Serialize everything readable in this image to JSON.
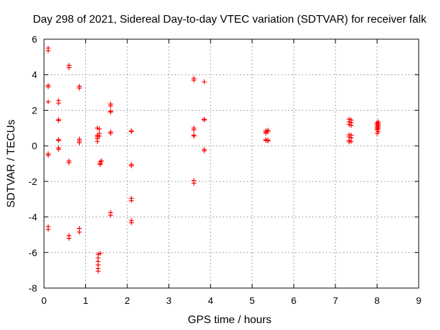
{
  "chart_data": {
    "type": "scatter",
    "title": "Day 298 of 2021, Sidereal Day-to-day VTEC variation (SDTVAR) for receiver falk",
    "xlabel": "GPS time / hours",
    "ylabel": "SDTVAR / TECUs",
    "xlim": [
      0,
      9
    ],
    "ylim": [
      -8,
      6
    ],
    "xticks": [
      0,
      1,
      2,
      3,
      4,
      5,
      6,
      7,
      8,
      9
    ],
    "yticks": [
      -8,
      -6,
      -4,
      -2,
      0,
      2,
      4,
      6
    ],
    "grid": true,
    "marker": "+",
    "marker_color": "#ff0000",
    "series": [
      {
        "name": "SDTVAR",
        "points": [
          [
            0.1,
            5.5
          ],
          [
            0.1,
            5.35
          ],
          [
            0.1,
            3.4
          ],
          [
            0.1,
            3.32
          ],
          [
            0.1,
            2.48
          ],
          [
            0.1,
            -0.45
          ],
          [
            0.1,
            -0.53
          ],
          [
            0.1,
            -4.55
          ],
          [
            0.1,
            -4.7
          ],
          [
            0.35,
            2.55
          ],
          [
            0.35,
            2.4
          ],
          [
            0.35,
            1.48
          ],
          [
            0.35,
            1.42
          ],
          [
            0.35,
            0.35
          ],
          [
            0.35,
            0.3
          ],
          [
            0.35,
            -0.12
          ],
          [
            0.35,
            -0.2
          ],
          [
            0.6,
            4.52
          ],
          [
            0.6,
            4.4
          ],
          [
            0.6,
            -0.85
          ],
          [
            0.6,
            -0.95
          ],
          [
            0.6,
            -5.05
          ],
          [
            0.6,
            -5.2
          ],
          [
            0.85,
            3.35
          ],
          [
            0.85,
            3.25
          ],
          [
            0.85,
            0.38
          ],
          [
            0.85,
            0.28
          ],
          [
            0.85,
            0.18
          ],
          [
            0.85,
            -4.65
          ],
          [
            0.85,
            -4.85
          ],
          [
            1.28,
            1.0
          ],
          [
            1.28,
            0.6
          ],
          [
            1.28,
            0.5
          ],
          [
            1.28,
            0.4
          ],
          [
            1.28,
            0.25
          ],
          [
            1.33,
            0.95
          ],
          [
            1.33,
            0.7
          ],
          [
            1.33,
            0.55
          ],
          [
            1.35,
            -0.9
          ],
          [
            1.35,
            -1.0
          ],
          [
            1.35,
            -1.05
          ],
          [
            1.38,
            -0.85
          ],
          [
            1.3,
            -6.1
          ],
          [
            1.3,
            -6.3
          ],
          [
            1.3,
            -6.5
          ],
          [
            1.3,
            -6.7
          ],
          [
            1.3,
            -6.9
          ],
          [
            1.3,
            -7.05
          ],
          [
            1.35,
            -6.05
          ],
          [
            1.6,
            2.35
          ],
          [
            1.6,
            2.25
          ],
          [
            1.6,
            1.95
          ],
          [
            1.6,
            1.9
          ],
          [
            1.6,
            0.78
          ],
          [
            1.6,
            0.7
          ],
          [
            1.6,
            -3.75
          ],
          [
            1.6,
            -3.9
          ],
          [
            2.1,
            0.85
          ],
          [
            2.1,
            0.8
          ],
          [
            2.1,
            -1.05
          ],
          [
            2.1,
            -1.12
          ],
          [
            2.1,
            -2.95
          ],
          [
            2.1,
            -3.08
          ],
          [
            2.1,
            -4.2
          ],
          [
            2.1,
            -4.32
          ],
          [
            3.6,
            3.8
          ],
          [
            3.6,
            3.7
          ],
          [
            3.6,
            1.0
          ],
          [
            3.6,
            0.9
          ],
          [
            3.6,
            0.6
          ],
          [
            3.6,
            0.55
          ],
          [
            3.6,
            -1.95
          ],
          [
            3.6,
            -2.1
          ],
          [
            3.85,
            3.6
          ],
          [
            3.85,
            1.5
          ],
          [
            3.85,
            1.45
          ],
          [
            3.85,
            -0.2
          ],
          [
            3.85,
            -0.28
          ],
          [
            5.33,
            0.85
          ],
          [
            5.33,
            0.78
          ],
          [
            5.33,
            0.72
          ],
          [
            5.33,
            0.35
          ],
          [
            5.33,
            0.3
          ],
          [
            5.38,
            0.88
          ],
          [
            5.38,
            0.8
          ],
          [
            5.38,
            0.32
          ],
          [
            5.38,
            0.28
          ],
          [
            7.33,
            1.5
          ],
          [
            7.33,
            1.35
          ],
          [
            7.33,
            1.2
          ],
          [
            7.33,
            0.62
          ],
          [
            7.33,
            0.5
          ],
          [
            7.33,
            0.3
          ],
          [
            7.33,
            0.22
          ],
          [
            7.38,
            1.45
          ],
          [
            7.38,
            1.3
          ],
          [
            7.38,
            1.15
          ],
          [
            7.38,
            0.6
          ],
          [
            7.38,
            0.45
          ],
          [
            7.38,
            0.25
          ],
          [
            8.0,
            1.3
          ],
          [
            8.0,
            1.2
          ],
          [
            8.0,
            1.1
          ],
          [
            8.0,
            1.0
          ],
          [
            8.0,
            0.9
          ],
          [
            8.0,
            0.7
          ],
          [
            8.03,
            1.35
          ],
          [
            8.03,
            1.25
          ],
          [
            8.03,
            1.15
          ],
          [
            8.03,
            1.05
          ],
          [
            8.03,
            0.95
          ],
          [
            8.03,
            0.8
          ]
        ]
      }
    ]
  }
}
